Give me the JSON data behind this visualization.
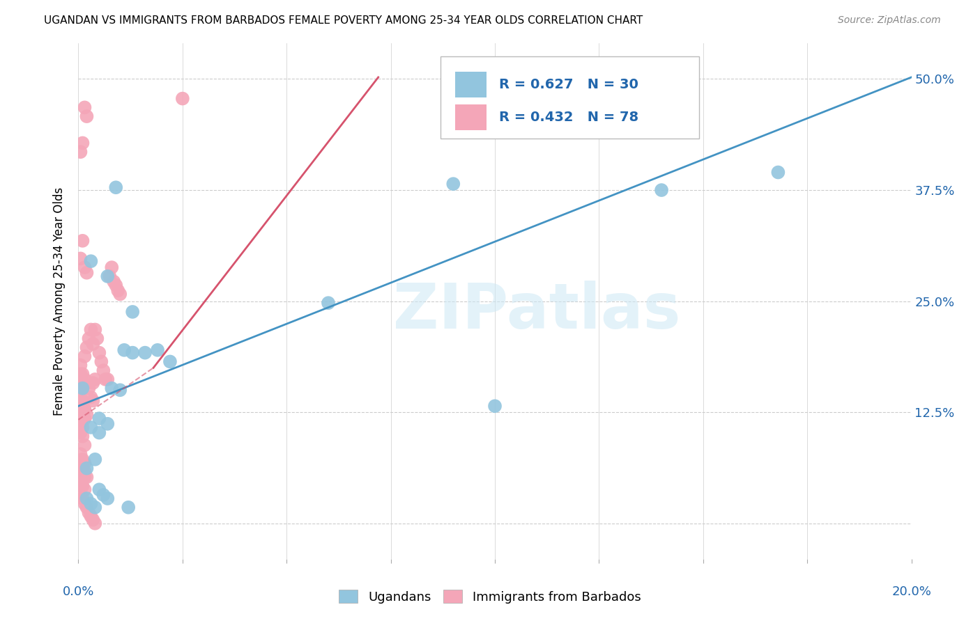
{
  "title": "UGANDAN VS IMMIGRANTS FROM BARBADOS FEMALE POVERTY AMONG 25-34 YEAR OLDS CORRELATION CHART",
  "source": "Source: ZipAtlas.com",
  "ylabel": "Female Poverty Among 25-34 Year Olds",
  "watermark": "ZIPatlas",
  "blue_color": "#92c5de",
  "pink_color": "#f4a6b8",
  "line_blue_color": "#4393c3",
  "line_pink_color": "#d6536d",
  "text_blue": "#2166ac",
  "xlim": [
    0.0,
    0.2
  ],
  "ylim": [
    -0.04,
    0.54
  ],
  "blue_line": [
    [
      0.0,
      0.132
    ],
    [
      0.2,
      0.502
    ]
  ],
  "pink_line": [
    [
      0.018,
      0.175
    ],
    [
      0.072,
      0.502
    ]
  ],
  "blue_scatter_x": [
    0.003,
    0.007,
    0.009,
    0.011,
    0.013,
    0.016,
    0.019,
    0.022,
    0.005,
    0.007,
    0.003,
    0.005,
    0.004,
    0.002,
    0.001,
    0.008,
    0.01,
    0.013,
    0.1,
    0.168,
    0.09,
    0.14,
    0.06,
    0.002,
    0.003,
    0.005,
    0.006,
    0.007,
    0.004,
    0.012
  ],
  "blue_scatter_y": [
    0.295,
    0.278,
    0.378,
    0.195,
    0.192,
    0.192,
    0.195,
    0.182,
    0.118,
    0.112,
    0.108,
    0.102,
    0.072,
    0.062,
    0.152,
    0.152,
    0.15,
    0.238,
    0.132,
    0.395,
    0.382,
    0.375,
    0.248,
    0.028,
    0.022,
    0.038,
    0.032,
    0.028,
    0.018,
    0.018
  ],
  "pink_scatter_x": [
    0.0005,
    0.001,
    0.0015,
    0.0005,
    0.001,
    0.0015,
    0.002,
    0.0025,
    0.003,
    0.0035,
    0.004,
    0.0045,
    0.005,
    0.0055,
    0.006,
    0.0065,
    0.007,
    0.0005,
    0.001,
    0.0015,
    0.0005,
    0.001,
    0.0005,
    0.001,
    0.0015,
    0.002,
    0.0005,
    0.001,
    0.0015,
    0.002,
    0.0025,
    0.003,
    0.0035,
    0.0005,
    0.001,
    0.0015,
    0.0005,
    0.001,
    0.0015,
    0.002,
    0.0005,
    0.001,
    0.0015,
    0.0005,
    0.001,
    0.0015,
    0.002,
    0.0025,
    0.003,
    0.0035,
    0.004,
    0.0005,
    0.001,
    0.0015,
    0.0005,
    0.001,
    0.004,
    0.0005,
    0.001,
    0.0005,
    0.0075,
    0.008,
    0.0085,
    0.009,
    0.0095,
    0.01,
    0.0005,
    0.001,
    0.0015,
    0.0005,
    0.001,
    0.0015,
    0.0035,
    0.0005,
    0.001,
    0.0015,
    0.002,
    0.025
  ],
  "pink_scatter_y": [
    0.152,
    0.158,
    0.162,
    0.178,
    0.168,
    0.188,
    0.198,
    0.208,
    0.218,
    0.202,
    0.218,
    0.208,
    0.192,
    0.182,
    0.172,
    0.162,
    0.162,
    0.128,
    0.122,
    0.118,
    0.112,
    0.108,
    0.298,
    0.318,
    0.288,
    0.282,
    0.418,
    0.428,
    0.468,
    0.458,
    0.152,
    0.142,
    0.138,
    0.102,
    0.098,
    0.088,
    0.062,
    0.068,
    0.058,
    0.052,
    0.048,
    0.042,
    0.038,
    0.032,
    0.028,
    0.022,
    0.018,
    0.012,
    0.008,
    0.004,
    0.0,
    0.152,
    0.138,
    0.128,
    0.122,
    0.118,
    0.162,
    0.158,
    0.152,
    0.168,
    0.278,
    0.288,
    0.272,
    0.268,
    0.262,
    0.258,
    0.078,
    0.072,
    0.068,
    0.062,
    0.058,
    0.052,
    0.158,
    0.138,
    0.132,
    0.128,
    0.122,
    0.478
  ]
}
